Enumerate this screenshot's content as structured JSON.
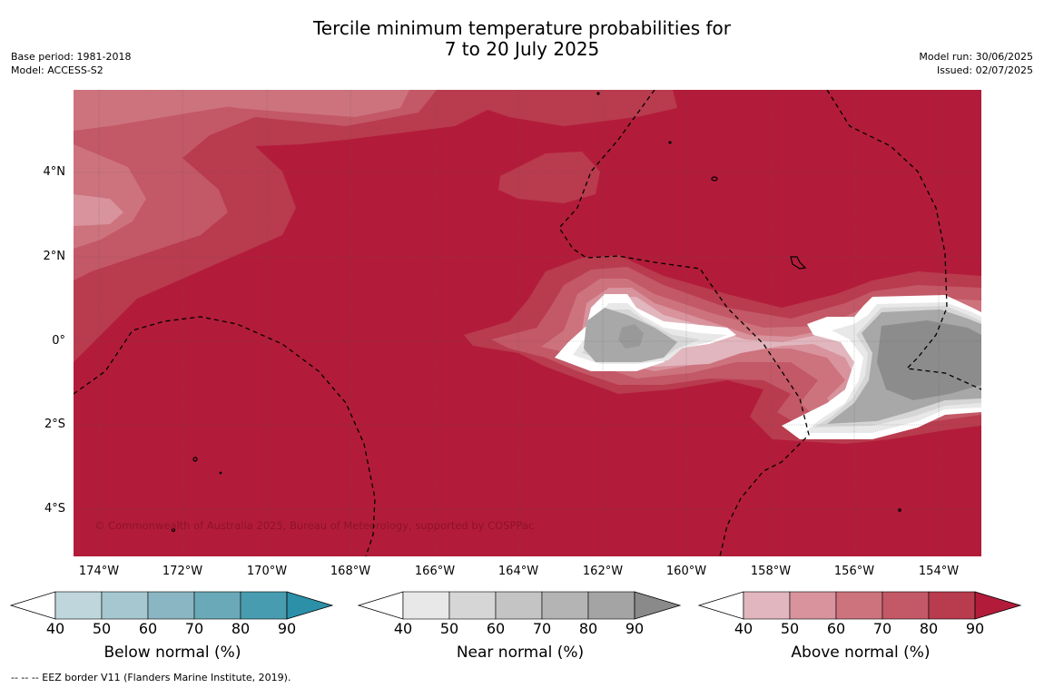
{
  "title_line1": "Tercile minimum temperature probabilities for",
  "title_line2": "7 to 20 July 2025",
  "base_period": "Base period: 1981-2018",
  "model": "Model: ACCESS-S2",
  "model_run": "Model run: 30/06/2025",
  "issued": "Issued: 02/07/2025",
  "lat_labels": [
    "4°N",
    "2°N",
    "0°",
    "2°S",
    "4°S"
  ],
  "lon_labels": [
    "174°W",
    "172°W",
    "170°W",
    "168°W",
    "166°W",
    "164°W",
    "162°W",
    "160°W",
    "158°W",
    "156°W",
    "154°W"
  ],
  "copyright": "© Commonwealth of Australia 2025, Bureau of Meteorology, supported by COSPPac",
  "footnote": "-- -- -- EEZ border V11 (Flanders Marine Institute, 2019).",
  "colorbars": [
    {
      "title": "Below normal (%)",
      "ticks": [
        "40",
        "50",
        "60",
        "70",
        "80",
        "90"
      ],
      "colors": [
        "#ffffff",
        "#bfd6dd",
        "#a6c7cf",
        "#89b6c2",
        "#6aa9b7",
        "#479daf",
        "#2b90a8"
      ]
    },
    {
      "title": "Near normal (%)",
      "ticks": [
        "40",
        "50",
        "60",
        "70",
        "80",
        "90"
      ],
      "colors": [
        "#ffffff",
        "#e8e8e8",
        "#d6d6d6",
        "#c4c4c4",
        "#b4b4b4",
        "#a4a4a4",
        "#8a8a8a"
      ]
    },
    {
      "title": "Above normal (%)",
      "ticks": [
        "40",
        "50",
        "60",
        "70",
        "80",
        "90"
      ],
      "colors": [
        "#ffffff",
        "#e2b6be",
        "#d8939d",
        "#cd737e",
        "#c35866",
        "#b93b4e",
        "#b21c3a"
      ]
    }
  ]
}
